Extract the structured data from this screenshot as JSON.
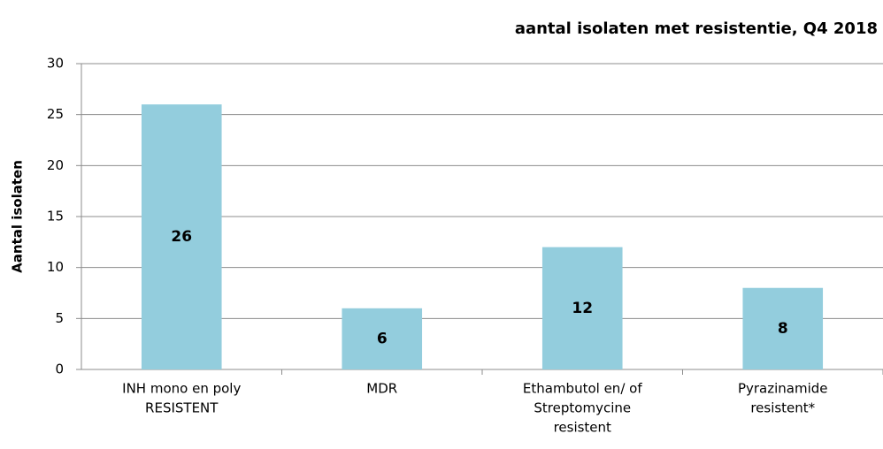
{
  "chart_data": {
    "type": "bar",
    "title": "aantal isolaten met resistentie, Q4 2018",
    "y_label": "Aantal isolaten",
    "categories": [
      [
        "INH mono en poly",
        "RESISTENT"
      ],
      [
        "MDR"
      ],
      [
        "Ethambutol en/ of",
        "Streptomycine",
        "resistent"
      ],
      [
        "Pyrazinamide",
        "resistent*"
      ]
    ],
    "values": [
      26,
      6,
      12,
      8
    ],
    "color": "#93cddd",
    "ylim": [
      0,
      30
    ],
    "yticks": [
      0,
      5,
      10,
      15,
      20,
      25,
      30
    ],
    "grid": true
  }
}
